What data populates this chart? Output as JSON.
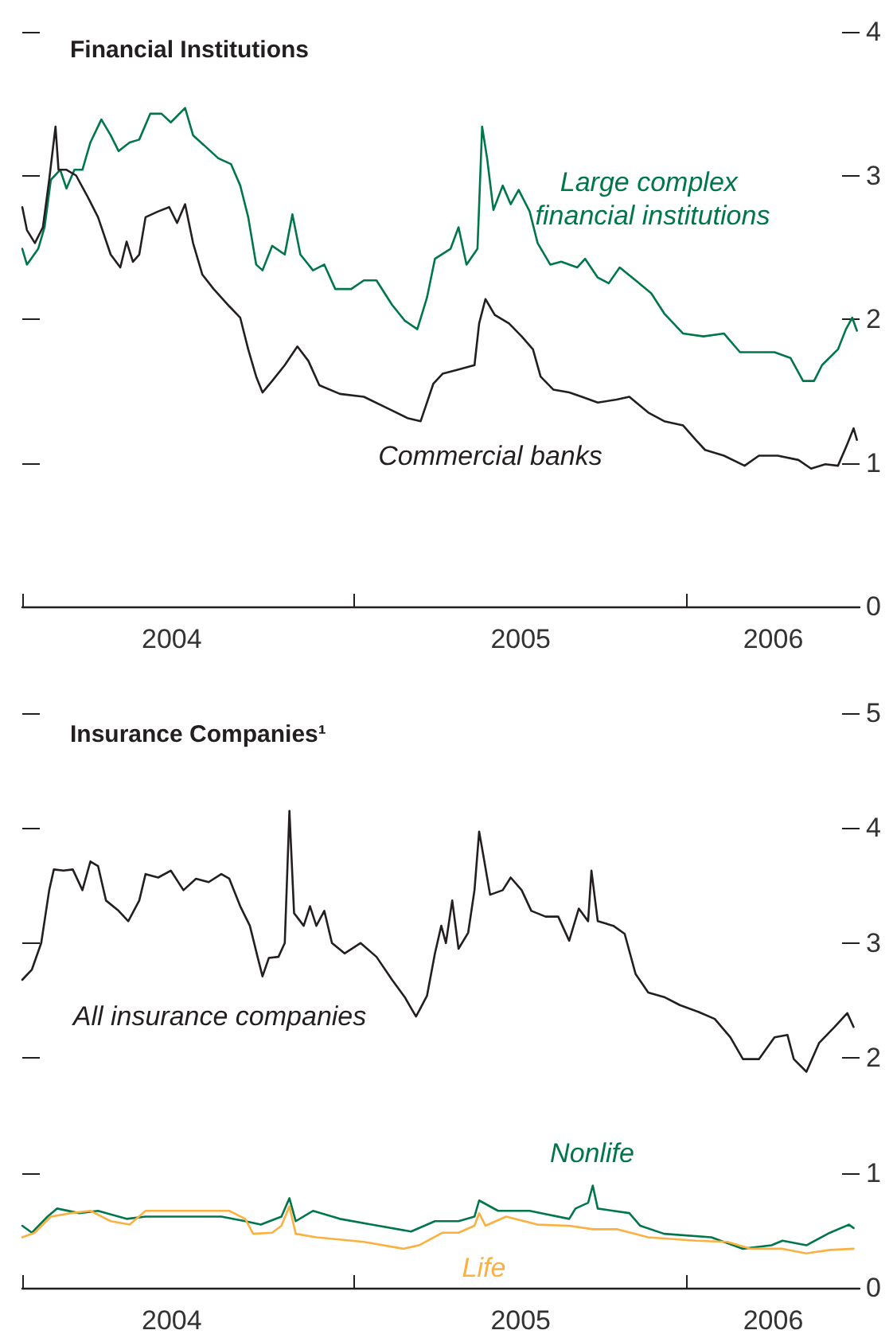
{
  "chart_data": [
    {
      "type": "line",
      "title": "Financial Institutions",
      "xlim": [
        2004,
        2006.52
      ],
      "xticks": [
        {
          "value": 2004,
          "label": null
        },
        {
          "value": 2004.45,
          "label": "2004"
        },
        {
          "value": 2005,
          "label": null
        },
        {
          "value": 2005.5,
          "label": "2005"
        },
        {
          "value": 2006,
          "label": null
        },
        {
          "value": 2006.26,
          "label": "2006"
        }
      ],
      "ylim": [
        0,
        4
      ],
      "yticks": [
        0,
        1,
        2,
        3,
        4
      ],
      "series": [
        {
          "name": "Large complex financial institutions",
          "color": "#00774a",
          "x": [
            2004.0,
            2004.014,
            2004.048,
            2004.067,
            2004.086,
            2004.114,
            2004.133,
            2004.157,
            2004.181,
            2004.205,
            2004.238,
            2004.266,
            2004.29,
            2004.323,
            2004.352,
            2004.385,
            2004.419,
            2004.447,
            2004.49,
            2004.514,
            2004.552,
            2004.59,
            2004.628,
            2004.656,
            2004.68,
            2004.704,
            2004.723,
            2004.752,
            2004.79,
            2004.813,
            2004.837,
            2004.875,
            2004.909,
            2004.942,
            2004.99,
            2005.028,
            2005.066,
            2005.113,
            2005.151,
            2005.189,
            2005.218,
            2005.242,
            2005.289,
            2005.313,
            2005.337,
            2005.37,
            2005.384,
            2005.399,
            2005.418,
            2005.446,
            2005.47,
            2005.494,
            2005.527,
            2005.551,
            2005.589,
            2005.622,
            2005.67,
            2005.694,
            2005.732,
            2005.765,
            2005.798,
            2005.846,
            2005.893,
            2005.932,
            2005.989,
            2006.05,
            2006.112,
            2006.16,
            2006.207,
            2006.264,
            2006.312,
            2006.35,
            2006.383,
            2006.407,
            2006.455,
            2006.479,
            2006.498,
            2006.512
          ],
          "values": [
            2.49,
            2.38,
            2.49,
            2.64,
            2.97,
            3.04,
            2.91,
            3.04,
            3.04,
            3.23,
            3.39,
            3.28,
            3.17,
            3.23,
            3.25,
            3.43,
            3.43,
            3.37,
            3.47,
            3.28,
            3.2,
            3.12,
            3.08,
            2.93,
            2.71,
            2.38,
            2.34,
            2.51,
            2.45,
            2.73,
            2.45,
            2.34,
            2.38,
            2.21,
            2.21,
            2.27,
            2.27,
            2.1,
            1.99,
            1.93,
            2.15,
            2.42,
            2.49,
            2.64,
            2.38,
            2.49,
            3.34,
            3.12,
            2.76,
            2.93,
            2.8,
            2.9,
            2.75,
            2.53,
            2.38,
            2.4,
            2.36,
            2.42,
            2.29,
            2.25,
            2.36,
            2.27,
            2.18,
            2.04,
            1.9,
            1.88,
            1.9,
            1.77,
            1.77,
            1.77,
            1.73,
            1.57,
            1.57,
            1.68,
            1.79,
            1.93,
            2.01,
            1.92
          ]
        },
        {
          "name": "Commercial banks",
          "color": "#231f20",
          "x": [
            2004.0,
            2004.014,
            2004.038,
            2004.062,
            2004.081,
            2004.1,
            2004.109,
            2004.133,
            2004.162,
            2004.195,
            2004.228,
            2004.266,
            2004.295,
            2004.314,
            2004.333,
            2004.352,
            2004.371,
            2004.409,
            2004.442,
            2004.466,
            2004.49,
            2004.514,
            2004.542,
            2004.576,
            2004.623,
            2004.656,
            2004.68,
            2004.704,
            2004.723,
            2004.752,
            2004.79,
            2004.828,
            2004.861,
            2004.894,
            2004.956,
            2005.028,
            2005.099,
            2005.161,
            2005.199,
            2005.237,
            2005.265,
            2005.313,
            2005.361,
            2005.375,
            2005.394,
            2005.422,
            2005.465,
            2005.503,
            2005.537,
            2005.56,
            2005.598,
            2005.646,
            2005.684,
            2005.732,
            2005.789,
            2005.827,
            2005.884,
            2005.932,
            2005.989,
            2006.027,
            2006.055,
            2006.112,
            2006.174,
            2006.217,
            2006.274,
            2006.336,
            2006.374,
            2006.417,
            2006.455,
            2006.483,
            2006.502,
            2006.512
          ],
          "values": [
            2.78,
            2.62,
            2.53,
            2.64,
            2.97,
            3.34,
            3.04,
            3.04,
            3.0,
            2.86,
            2.71,
            2.45,
            2.36,
            2.54,
            2.4,
            2.45,
            2.71,
            2.75,
            2.78,
            2.67,
            2.8,
            2.53,
            2.31,
            2.21,
            2.09,
            2.01,
            1.79,
            1.6,
            1.49,
            1.57,
            1.68,
            1.81,
            1.71,
            1.54,
            1.48,
            1.46,
            1.38,
            1.31,
            1.29,
            1.55,
            1.62,
            1.65,
            1.68,
            1.97,
            2.14,
            2.03,
            1.97,
            1.88,
            1.79,
            1.6,
            1.51,
            1.49,
            1.46,
            1.42,
            1.44,
            1.46,
            1.35,
            1.29,
            1.26,
            1.16,
            1.09,
            1.05,
            0.98,
            1.05,
            1.05,
            1.02,
            0.96,
            0.99,
            0.98,
            1.13,
            1.24,
            1.16
          ]
        }
      ]
    },
    {
      "type": "line",
      "title": "Insurance Companies¹",
      "xlim": [
        2004,
        2006.52
      ],
      "xticks": [
        {
          "value": 2004,
          "label": null
        },
        {
          "value": 2004.45,
          "label": "2004"
        },
        {
          "value": 2005,
          "label": null
        },
        {
          "value": 2005.5,
          "label": "2005"
        },
        {
          "value": 2006,
          "label": null
        },
        {
          "value": 2006.26,
          "label": "2006"
        }
      ],
      "ylim": [
        0,
        5
      ],
      "yticks": [
        0,
        1,
        2,
        3,
        4,
        5
      ],
      "series": [
        {
          "name": "All insurance companies",
          "color": "#231f20",
          "x": [
            2004.0,
            2004.029,
            2004.057,
            2004.081,
            2004.095,
            2004.124,
            2004.152,
            2004.181,
            2004.205,
            2004.228,
            2004.252,
            2004.29,
            2004.319,
            2004.352,
            2004.371,
            2004.409,
            2004.447,
            2004.485,
            2004.523,
            2004.561,
            2004.599,
            2004.623,
            2004.656,
            2004.685,
            2004.709,
            2004.723,
            2004.742,
            2004.771,
            2004.79,
            2004.804,
            2004.818,
            2004.847,
            2004.866,
            2004.885,
            2004.909,
            2004.932,
            2004.97,
            2005.018,
            2005.066,
            2005.113,
            2005.151,
            2005.185,
            2005.218,
            2005.242,
            2005.261,
            2005.275,
            2005.294,
            2005.313,
            2005.342,
            2005.361,
            2005.375,
            2005.389,
            2005.408,
            2005.446,
            2005.47,
            2005.503,
            2005.532,
            2005.575,
            2005.613,
            2005.646,
            2005.675,
            2005.703,
            2005.713,
            2005.732,
            2005.779,
            2005.813,
            2005.846,
            2005.884,
            2005.932,
            2005.979,
            2006.036,
            2006.084,
            2006.131,
            2006.169,
            2006.217,
            2006.264,
            2006.303,
            2006.322,
            2006.36,
            2006.398,
            2006.445,
            2006.483,
            2006.502
          ],
          "values": [
            2.68,
            2.77,
            3.0,
            3.46,
            3.64,
            3.63,
            3.64,
            3.46,
            3.71,
            3.67,
            3.37,
            3.28,
            3.19,
            3.37,
            3.6,
            3.57,
            3.63,
            3.46,
            3.56,
            3.53,
            3.6,
            3.56,
            3.32,
            3.15,
            2.87,
            2.71,
            2.87,
            2.88,
            3.0,
            4.15,
            3.26,
            3.15,
            3.32,
            3.15,
            3.28,
            3.0,
            2.91,
            3.0,
            2.88,
            2.68,
            2.53,
            2.36,
            2.54,
            2.91,
            3.15,
            3.0,
            3.37,
            2.95,
            3.09,
            3.46,
            3.97,
            3.74,
            3.42,
            3.46,
            3.57,
            3.46,
            3.28,
            3.23,
            3.23,
            3.02,
            3.3,
            3.19,
            3.63,
            3.19,
            3.15,
            3.08,
            2.73,
            2.57,
            2.53,
            2.46,
            2.4,
            2.34,
            2.18,
            1.99,
            1.99,
            2.18,
            2.2,
            1.99,
            1.88,
            2.13,
            2.27,
            2.39,
            2.27
          ]
        },
        {
          "name": "Nonlife",
          "color": "#00774a",
          "x": [
            2004.0,
            2004.029,
            2004.076,
            2004.105,
            2004.171,
            2004.228,
            2004.314,
            2004.371,
            2004.457,
            2004.599,
            2004.671,
            2004.718,
            2004.78,
            2004.804,
            2004.823,
            2004.875,
            2004.956,
            2005.051,
            2005.17,
            2005.242,
            2005.313,
            2005.361,
            2005.375,
            2005.432,
            2005.527,
            2005.646,
            2005.665,
            2005.703,
            2005.717,
            2005.732,
            2005.827,
            2005.86,
            2005.932,
            2006.074,
            2006.169,
            2006.255,
            2006.288,
            2006.36,
            2006.431,
            2006.488,
            2006.502
          ],
          "values": [
            0.54,
            0.48,
            0.62,
            0.69,
            0.65,
            0.67,
            0.6,
            0.62,
            0.62,
            0.62,
            0.58,
            0.55,
            0.62,
            0.78,
            0.58,
            0.67,
            0.6,
            0.55,
            0.49,
            0.58,
            0.58,
            0.62,
            0.76,
            0.67,
            0.67,
            0.6,
            0.69,
            0.74,
            0.89,
            0.69,
            0.65,
            0.54,
            0.47,
            0.44,
            0.34,
            0.37,
            0.41,
            0.37,
            0.48,
            0.55,
            0.52
          ]
        },
        {
          "name": "Life",
          "color": "#fbb040",
          "x": [
            2004.0,
            2004.038,
            2004.086,
            2004.147,
            2004.205,
            2004.266,
            2004.323,
            2004.371,
            2004.48,
            2004.552,
            2004.623,
            2004.671,
            2004.695,
            2004.752,
            2004.78,
            2004.804,
            2004.823,
            2004.885,
            2005.028,
            2005.147,
            2005.194,
            2005.265,
            2005.313,
            2005.361,
            2005.375,
            2005.394,
            2005.456,
            2005.551,
            2005.646,
            2005.717,
            2005.789,
            2005.884,
            2006.027,
            2006.122,
            2006.193,
            2006.288,
            2006.36,
            2006.431,
            2006.502
          ],
          "values": [
            0.44,
            0.48,
            0.62,
            0.65,
            0.67,
            0.58,
            0.55,
            0.67,
            0.67,
            0.67,
            0.67,
            0.6,
            0.47,
            0.48,
            0.54,
            0.71,
            0.47,
            0.44,
            0.4,
            0.34,
            0.37,
            0.48,
            0.48,
            0.54,
            0.65,
            0.54,
            0.62,
            0.55,
            0.54,
            0.51,
            0.51,
            0.44,
            0.41,
            0.4,
            0.34,
            0.34,
            0.3,
            0.33,
            0.34
          ]
        }
      ]
    }
  ]
}
